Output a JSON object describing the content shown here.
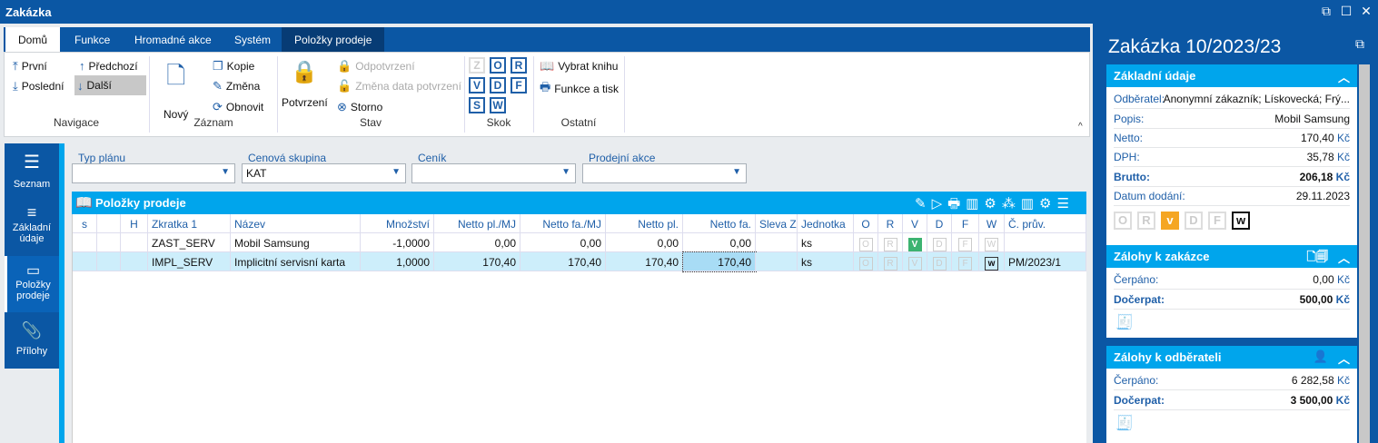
{
  "window": {
    "title": "Zakázka"
  },
  "tabs": [
    "Domů",
    "Funkce",
    "Hromadné akce",
    "Systém",
    "Položky prodeje"
  ],
  "ribbon": {
    "nav": {
      "first": "První",
      "prev": "Předchozí",
      "last": "Poslední",
      "next": "Další",
      "group": "Navigace"
    },
    "record": {
      "new": "Nový",
      "copy": "Kopie",
      "edit": "Změna",
      "refresh": "Obnovit",
      "group": "Záznam"
    },
    "state": {
      "confirm": "Potvrzení",
      "unconfirm": "Odpotvrzení",
      "change_date": "Změna data potvrzení",
      "cancel": "Storno",
      "group": "Stav"
    },
    "jump": {
      "letters": [
        "Z",
        "O",
        "R",
        "V",
        "D",
        "F",
        "S",
        "W"
      ],
      "group": "Skok"
    },
    "other": {
      "book": "Vybrat knihu",
      "print": "Funkce a tisk",
      "group": "Ostatní"
    }
  },
  "leftnav": [
    "Seznam",
    "Základní údaje",
    "Položky prodeje",
    "Přílohy"
  ],
  "filters": [
    {
      "label": "Typ plánu",
      "value": ""
    },
    {
      "label": "Cenová skupina",
      "value": "KAT"
    },
    {
      "label": "Ceník",
      "value": ""
    },
    {
      "label": "Prodejní akce",
      "value": ""
    }
  ],
  "grid": {
    "title": "Položky prodeje",
    "columns": [
      "s",
      "",
      "H",
      "Zkratka 1",
      "Název",
      "Množství",
      "Netto pl./MJ",
      "Netto fa./MJ",
      "Netto pl.",
      "Netto fa.",
      "Sleva Z",
      "Jednotka",
      "O",
      "R",
      "V",
      "D",
      "F",
      "W",
      "Č. prův."
    ],
    "rows": [
      {
        "code": "ZAST_SERV",
        "name": "Mobil Samsung",
        "qty": "-1,0000",
        "np_mj": "0,00",
        "nf_mj": "0,00",
        "np": "0,00",
        "nf": "0,00",
        "sleva": "",
        "unit": "ks",
        "flags_on": [
          "V"
        ],
        "doc": ""
      },
      {
        "code": "IMPL_SERV",
        "name": "Implicitní servisní karta",
        "qty": "1,0000",
        "np_mj": "170,40",
        "nf_mj": "170,40",
        "np": "170,40",
        "nf": "170,40",
        "sleva": "",
        "unit": "ks",
        "flags_on": [
          "W"
        ],
        "doc": "PM/2023/1",
        "selected": true
      }
    ]
  },
  "panel": {
    "title": "Zakázka 10/2023/23",
    "basic": {
      "title": "Základní údaje",
      "odberatel_label": "Odběratel:",
      "odberatel": "Anonymní zákazník; Lískovecká; Frý...",
      "popis_label": "Popis:",
      "popis": "Mobil Samsung",
      "netto_label": "Netto:",
      "netto": "170,40",
      "dph_label": "DPH:",
      "dph": "35,78",
      "brutto_label": "Brutto:",
      "brutto": "206,18",
      "datum_label": "Datum dodání:",
      "datum": "29.11.2023",
      "currency": "Kč",
      "flags": [
        "O",
        "R",
        "V",
        "D",
        "F",
        "W"
      ]
    },
    "zalohy_zakazka": {
      "title": "Zálohy k zakázce",
      "cerpano_label": "Čerpáno:",
      "cerpano": "0,00",
      "docerpat_label": "Dočerpat:",
      "docerpat": "500,00"
    },
    "zalohy_odberatel": {
      "title": "Zálohy k odběrateli",
      "cerpano_label": "Čerpáno:",
      "cerpano": "6 282,58",
      "docerpat_label": "Dočerpat:",
      "docerpat": "3 500,00"
    }
  },
  "colors": {
    "brand": "#0b57a4",
    "accent": "#00a5ec",
    "confirm": "#3cb371",
    "v_flag": "#f5a623"
  }
}
